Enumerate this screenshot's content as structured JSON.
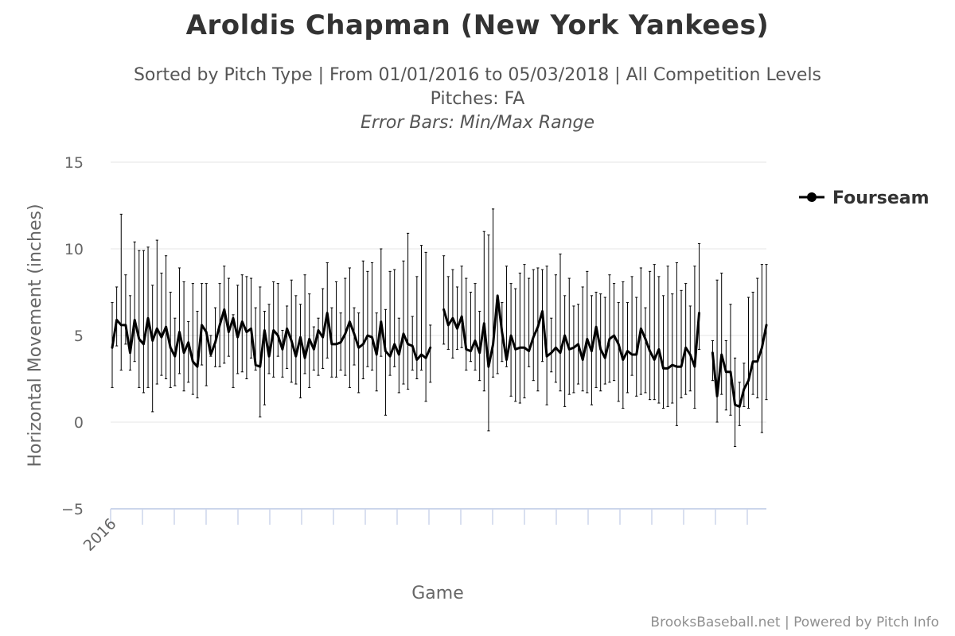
{
  "chart_data": {
    "type": "line",
    "title": "Aroldis Chapman (New York Yankees)",
    "subtitle": "Sorted by Pitch Type | From 01/01/2016 to 05/03/2018 | All Competition Levels",
    "subtitle2": "Pitches: FA",
    "subtitle3": "Error Bars: Min/Max Range",
    "xlabel": "Game",
    "ylabel": "Horizontal Movement (inches)",
    "x_tick_labels": [
      "2016"
    ],
    "y_ticks": [
      -5,
      0,
      5,
      10,
      15
    ],
    "ylim": [
      -5,
      15
    ],
    "grid": true,
    "legend_position": "right",
    "credits": "BrooksBaseball.net | Powered by Pitch Info",
    "series": [
      {
        "name": "Fourseam",
        "color": "#000000",
        "segments": [
          {
            "values": [
              4.3,
              5.9,
              5.6,
              5.6,
              4.0,
              5.9,
              4.8,
              4.5,
              6.0,
              4.7,
              5.4,
              4.9,
              5.5,
              4.3,
              3.8,
              5.2,
              4.0,
              4.6,
              3.5,
              3.2,
              5.6,
              5.2,
              3.9,
              4.6,
              5.6,
              6.5,
              5.2,
              6.0,
              4.9,
              5.8,
              5.2,
              5.4,
              3.3,
              3.2,
              5.3,
              3.8,
              5.3,
              5.0,
              4.2,
              5.4,
              4.7,
              3.8,
              4.9,
              3.7,
              4.8,
              4.2,
              5.3,
              4.9,
              6.3,
              4.5,
              4.5,
              4.6,
              5.1,
              5.8,
              5.1,
              4.3,
              4.5,
              5.0,
              4.9,
              3.9,
              5.8,
              4.1,
              3.8,
              4.5,
              3.9,
              5.1,
              4.5,
              4.4,
              3.6,
              3.9,
              3.7,
              4.3
            ],
            "min": [
              2.0,
              4.4,
              3.0,
              4.5,
              3.0,
              3.5,
              2.0,
              1.7,
              2.0,
              0.6,
              2.2,
              2.7,
              2.5,
              2.0,
              2.1,
              2.8,
              1.8,
              2.3,
              1.6,
              1.4,
              3.3,
              2.1,
              3.8,
              3.2,
              3.2,
              3.4,
              3.8,
              2.0,
              2.8,
              2.9,
              2.5,
              3.7,
              3.0,
              0.3,
              1.0,
              2.8,
              2.6,
              3.8,
              2.6,
              3.1,
              2.3,
              2.2,
              1.4,
              2.8,
              2.0,
              3.0,
              2.7,
              3.1,
              3.7,
              2.6,
              2.6,
              3.0,
              2.7,
              2.0,
              3.3,
              1.7,
              2.5,
              3.2,
              3.0,
              1.8,
              3.8,
              0.4,
              2.7,
              3.2,
              1.7,
              2.2,
              1.9,
              3.0,
              2.5,
              3.0,
              1.2,
              2.3
            ],
            "max": [
              6.9,
              7.8,
              12.0,
              8.5,
              7.3,
              10.4,
              9.9,
              9.9,
              10.1,
              7.9,
              10.5,
              8.6,
              9.6,
              7.5,
              6.0,
              8.9,
              8.1,
              5.8,
              8.0,
              6.4,
              8.0,
              8.0,
              5.0,
              6.6,
              8.0,
              9.0,
              8.3,
              6.2,
              7.9,
              8.5,
              8.4,
              8.3,
              6.6,
              7.8,
              6.4,
              6.8,
              8.1,
              8.0,
              5.3,
              6.7,
              8.2,
              7.3,
              6.8,
              8.5,
              7.4,
              5.5,
              6.0,
              7.7,
              9.2,
              6.6,
              8.1,
              6.3,
              8.3,
              8.9,
              6.6,
              6.3,
              9.3,
              8.7,
              9.2,
              6.3,
              10.0,
              6.5,
              8.7,
              8.8,
              6.0,
              9.3,
              10.9,
              6.1,
              8.4,
              10.2,
              9.8,
              5.6
            ]
          },
          {
            "values": [
              6.5,
              5.6,
              6.0,
              5.4,
              6.1,
              4.2,
              4.1,
              4.7,
              4.0,
              5.7,
              3.2,
              4.5,
              7.3,
              5.2,
              3.6,
              5.0,
              4.2,
              4.3,
              4.3,
              4.1,
              4.9,
              5.5,
              6.4,
              3.8,
              4.0,
              4.3,
              4.0,
              5.0,
              4.2,
              4.3,
              4.5,
              3.6,
              4.8,
              4.1,
              5.5,
              4.2,
              3.7,
              4.8,
              5.0,
              4.5,
              3.6,
              4.1,
              3.9,
              3.9,
              5.4,
              4.8,
              4.1,
              3.6,
              4.2,
              3.1,
              3.1,
              3.3,
              3.2,
              3.2,
              4.3,
              3.9,
              3.2,
              6.3
            ],
            "min": [
              4.5,
              4.2,
              3.7,
              4.2,
              4.3,
              3.0,
              3.5,
              3.0,
              2.4,
              1.8,
              -0.5,
              2.6,
              2.8,
              3.5,
              3.2,
              1.5,
              1.2,
              1.1,
              1.4,
              3.2,
              2.4,
              1.8,
              3.5,
              1.0,
              2.9,
              2.3,
              1.8,
              0.9,
              1.6,
              1.7,
              2.2,
              1.8,
              1.7,
              1.0,
              2.0,
              1.8,
              2.2,
              2.3,
              2.4,
              1.2,
              0.8,
              1.7,
              2.7,
              1.5,
              1.6,
              1.7,
              1.3,
              1.3,
              1.1,
              0.8,
              0.9,
              1.1,
              -0.2,
              1.4,
              1.6,
              1.8,
              0.8,
              4.2
            ],
            "max": [
              9.6,
              8.4,
              8.8,
              7.8,
              9.0,
              8.3,
              7.5,
              8.0,
              6.4,
              11.0,
              10.8,
              12.3,
              6.7,
              6.9,
              9.0,
              8.0,
              7.7,
              8.6,
              9.1,
              8.3,
              8.8,
              8.9,
              8.8,
              9.0,
              6.0,
              8.5,
              9.7,
              7.3,
              8.3,
              6.7,
              6.8,
              7.8,
              8.7,
              7.3,
              7.5,
              7.4,
              7.2,
              8.5,
              8.0,
              6.9,
              8.1,
              6.9,
              8.4,
              7.2,
              8.9,
              6.6,
              8.7,
              9.1,
              8.4,
              7.3,
              9.0,
              7.4,
              9.2,
              7.6,
              8.0,
              6.7,
              9.0,
              10.3
            ]
          },
          {
            "values": [
              4.0,
              1.5,
              3.9,
              2.9,
              2.9,
              1.0,
              0.9,
              1.9,
              2.4,
              3.5,
              3.5,
              4.3,
              5.6
            ],
            "min": [
              2.4,
              0.0,
              1.6,
              0.7,
              0.4,
              -1.4,
              -0.2,
              0.9,
              0.8,
              1.6,
              1.4,
              -0.6,
              1.3
            ],
            "max": [
              4.7,
              8.2,
              8.6,
              4.7,
              6.8,
              3.7,
              2.3,
              3.4,
              7.2,
              7.5,
              8.3,
              9.1,
              9.1
            ]
          }
        ]
      }
    ]
  }
}
